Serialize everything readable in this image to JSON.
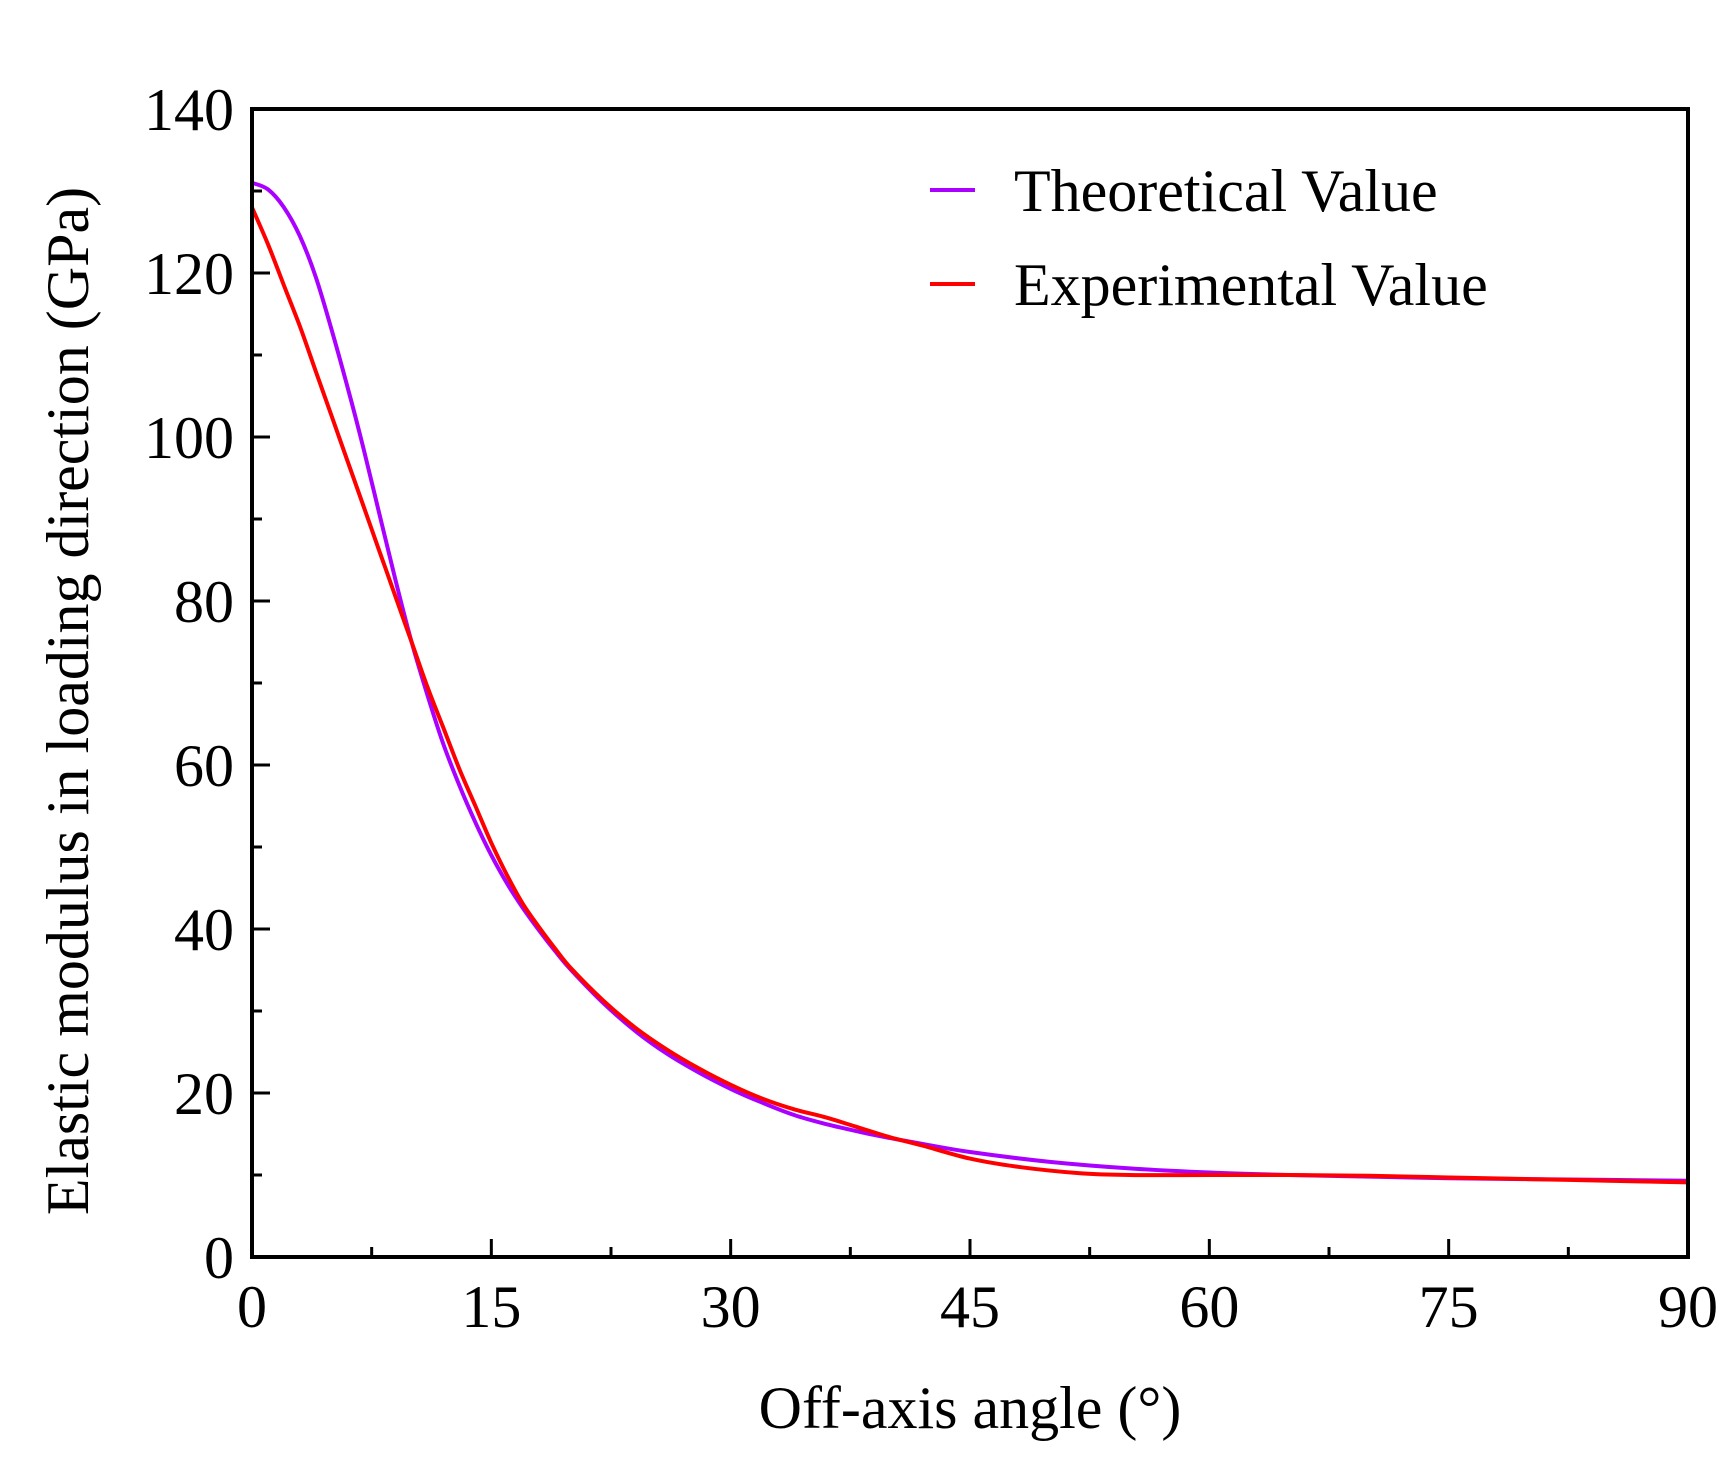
{
  "chart_data": {
    "type": "line",
    "title": "",
    "xlabel": "Off-axis angle (°)",
    "ylabel": "Elastic modulus in loading direction (GPa)",
    "xlim": [
      0,
      90
    ],
    "ylim": [
      0,
      140
    ],
    "xticks": [
      0,
      15,
      30,
      45,
      60,
      75,
      90
    ],
    "xtick_labels": [
      "0",
      "15",
      "30",
      "45",
      "60",
      "75",
      "90"
    ],
    "yticks": [
      0,
      20,
      40,
      60,
      80,
      100,
      120,
      140
    ],
    "ytick_labels": [
      "0",
      "20",
      "40",
      "60",
      "80",
      "100",
      "120",
      "140"
    ],
    "grid": false,
    "legend_position": "top-right",
    "series": [
      {
        "name": "Theoretical Value",
        "color": "#aa00ff",
        "x": [
          0,
          1,
          2,
          3,
          4,
          5,
          6,
          7,
          8,
          9,
          10,
          11,
          12,
          13,
          14,
          15,
          16,
          17,
          18,
          19,
          20,
          22,
          24,
          26,
          28,
          30,
          32,
          34,
          36,
          38,
          40,
          42,
          45,
          50,
          55,
          60,
          65,
          70,
          75,
          80,
          85,
          90
        ],
        "values": [
          131,
          130.2,
          128,
          124.5,
          119.5,
          113,
          106,
          98.5,
          90.5,
          82.5,
          75,
          68.5,
          62.5,
          57.5,
          53,
          49,
          45.5,
          42.5,
          39.8,
          37.3,
          35,
          31,
          27.6,
          24.8,
          22.5,
          20.5,
          18.8,
          17.3,
          16.2,
          15.3,
          14.5,
          13.8,
          12.8,
          11.6,
          10.8,
          10.3,
          10.0,
          9.8,
          9.6,
          9.5,
          9.4,
          9.3
        ]
      },
      {
        "name": "Experimental Value",
        "color": "#ff0000",
        "x": [
          0,
          1,
          2,
          3,
          4,
          5,
          6,
          7,
          8,
          9,
          10,
          11,
          12,
          13,
          14,
          15,
          16,
          17,
          18,
          19,
          20,
          22,
          24,
          26,
          28,
          30,
          32,
          34,
          36,
          38,
          40,
          42,
          45,
          48,
          52,
          55,
          60,
          65,
          70,
          75,
          80,
          85,
          90
        ],
        "values": [
          128,
          123.5,
          118.5,
          113.5,
          108,
          102.5,
          97,
          91.5,
          86,
          80.5,
          75,
          69.5,
          64.5,
          59.5,
          55,
          50.5,
          46.5,
          43,
          40.2,
          37.6,
          35.2,
          31.3,
          28,
          25.3,
          23,
          21,
          19.3,
          18,
          17,
          15.8,
          14.6,
          13.6,
          12.0,
          11.0,
          10.2,
          10.0,
          10.0,
          10.0,
          9.9,
          9.7,
          9.5,
          9.3,
          9.1
        ]
      }
    ]
  }
}
